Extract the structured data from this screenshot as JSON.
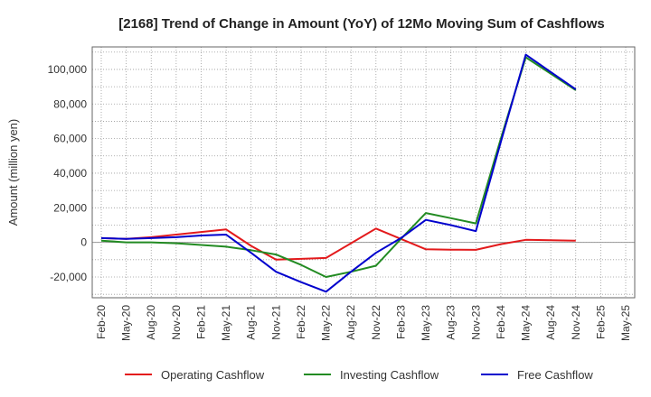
{
  "chart_data": {
    "type": "line",
    "title": "[2168]  Trend of Change in Amount (YoY) of 12Mo Moving Sum of Cashflows",
    "xlabel": "",
    "ylabel": "Amount (million yen)",
    "ylim": [
      -32000,
      113000
    ],
    "yticks": [
      -20000,
      0,
      20000,
      40000,
      60000,
      80000,
      100000
    ],
    "ytick_labels": [
      "-20,000",
      "0",
      "20,000",
      "40,000",
      "60,000",
      "80,000",
      "100,000"
    ],
    "categories": [
      "Feb-20",
      "May-20",
      "Aug-20",
      "Nov-20",
      "Feb-21",
      "May-21",
      "Aug-21",
      "Nov-21",
      "Feb-22",
      "May-22",
      "Aug-22",
      "Nov-22",
      "Feb-23",
      "May-23",
      "Aug-23",
      "Nov-23",
      "Feb-24",
      "May-24",
      "Aug-24",
      "Nov-24",
      "Feb-25",
      "May-25"
    ],
    "grid": true,
    "legend_position": "bottom",
    "series": [
      {
        "name": "Operating Cashflow",
        "color": "#e31a1c",
        "values": [
          2500,
          2000,
          3000,
          4500,
          6000,
          7500,
          -2000,
          -10000,
          -9500,
          -9000,
          -500,
          8000,
          2000,
          -4000,
          -4200,
          -4300,
          -1000,
          1500,
          1200,
          1000,
          null,
          null
        ]
      },
      {
        "name": "Investing Cashflow",
        "color": "#228b22",
        "values": [
          1000,
          0,
          0,
          -500,
          -1500,
          -2500,
          -4500,
          -7000,
          -13000,
          -20000,
          -17000,
          -13500,
          2000,
          17000,
          14000,
          11000,
          60000,
          107000,
          97500,
          88000,
          null,
          null
        ]
      },
      {
        "name": "Free Cashflow",
        "color": "#0000cd",
        "values": [
          2500,
          2000,
          2500,
          3000,
          4000,
          4500,
          -6000,
          -17000,
          -23000,
          -28500,
          -17000,
          -6000,
          2500,
          13000,
          10000,
          6500,
          58000,
          108500,
          98500,
          88500,
          null,
          null
        ]
      }
    ]
  }
}
